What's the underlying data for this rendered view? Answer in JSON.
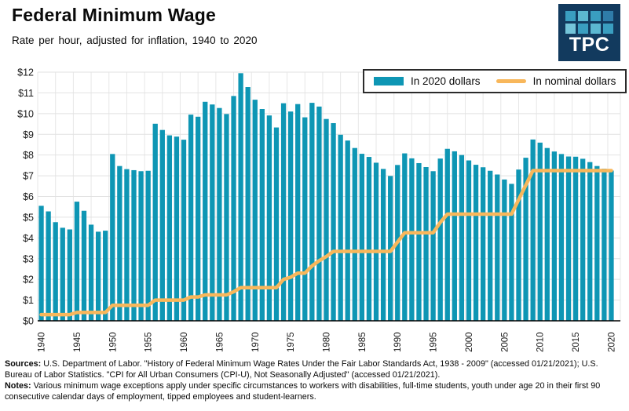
{
  "header": {
    "title": "Federal Minimum Wage",
    "subtitle": "Rate per hour, adjusted for inflation, 1940 to 2020"
  },
  "logo": {
    "text": "TPC",
    "bg_color": "#123A5E",
    "square_colors": [
      "#3A9EC0",
      "#5CB8D1",
      "#3A9EC0",
      "#2F7CA9",
      "#74C4D9",
      "#3A9EC0",
      "#5CB8D1",
      "#3A9EC0"
    ]
  },
  "chart_data": {
    "type": "bar",
    "title": "Federal Minimum Wage",
    "xlabel": "",
    "ylabel": "Rate per hour",
    "ylim": [
      0,
      12
    ],
    "grid": true,
    "legend_position": "top-right",
    "x": [
      1940,
      1941,
      1942,
      1943,
      1944,
      1945,
      1946,
      1947,
      1948,
      1949,
      1950,
      1951,
      1952,
      1953,
      1954,
      1955,
      1956,
      1957,
      1958,
      1959,
      1960,
      1961,
      1962,
      1963,
      1964,
      1965,
      1966,
      1967,
      1968,
      1969,
      1970,
      1971,
      1972,
      1973,
      1974,
      1975,
      1976,
      1977,
      1978,
      1979,
      1980,
      1981,
      1982,
      1983,
      1984,
      1985,
      1986,
      1987,
      1988,
      1989,
      1990,
      1991,
      1992,
      1993,
      1994,
      1995,
      1996,
      1997,
      1998,
      1999,
      2000,
      2001,
      2002,
      2003,
      2004,
      2005,
      2006,
      2007,
      2008,
      2009,
      2010,
      2011,
      2012,
      2013,
      2014,
      2015,
      2016,
      2017,
      2018,
      2019,
      2020
    ],
    "x_ticks": [
      1940,
      1945,
      1950,
      1955,
      1960,
      1965,
      1970,
      1975,
      1980,
      1985,
      1990,
      1995,
      2000,
      2005,
      2010,
      2015,
      2020
    ],
    "y_ticks": [
      "$0",
      "$1",
      "$2",
      "$3",
      "$4",
      "$5",
      "$6",
      "$7",
      "$8",
      "$9",
      "$10",
      "$11",
      "$12"
    ],
    "series": [
      {
        "name": "In 2020 dollars",
        "type": "bar",
        "color": "#0E96B4",
        "values": [
          5.55,
          5.28,
          4.76,
          4.49,
          4.41,
          5.75,
          5.31,
          4.64,
          4.3,
          4.35,
          8.05,
          7.47,
          7.32,
          7.27,
          7.22,
          7.24,
          9.51,
          9.21,
          8.95,
          8.89,
          8.74,
          9.95,
          9.85,
          10.57,
          10.44,
          10.27,
          9.98,
          10.85,
          11.95,
          11.28,
          10.67,
          10.22,
          9.91,
          9.33,
          10.5,
          10.1,
          10.46,
          9.82,
          10.52,
          10.34,
          9.74,
          9.54,
          8.98,
          8.7,
          8.34,
          8.06,
          7.91,
          7.63,
          7.33,
          6.99,
          7.52,
          8.08,
          7.84,
          7.61,
          7.42,
          7.22,
          7.83,
          8.3,
          8.18,
          8.0,
          7.74,
          7.53,
          7.41,
          7.24,
          7.06,
          6.82,
          6.61,
          7.3,
          7.87,
          8.75,
          8.6,
          8.34,
          8.17,
          8.05,
          7.93,
          7.92,
          7.82,
          7.66,
          7.47,
          7.34,
          7.25
        ]
      },
      {
        "name": "In nominal dollars",
        "type": "line",
        "color": "#F8B75B",
        "values": [
          0.3,
          0.3,
          0.3,
          0.3,
          0.3,
          0.4,
          0.4,
          0.4,
          0.4,
          0.4,
          0.75,
          0.75,
          0.75,
          0.75,
          0.75,
          0.75,
          1.0,
          1.0,
          1.0,
          1.0,
          1.0,
          1.15,
          1.15,
          1.25,
          1.25,
          1.25,
          1.25,
          1.4,
          1.6,
          1.6,
          1.6,
          1.6,
          1.6,
          1.6,
          2.0,
          2.1,
          2.3,
          2.3,
          2.65,
          2.9,
          3.1,
          3.35,
          3.35,
          3.35,
          3.35,
          3.35,
          3.35,
          3.35,
          3.35,
          3.35,
          3.8,
          4.25,
          4.25,
          4.25,
          4.25,
          4.25,
          4.75,
          5.15,
          5.15,
          5.15,
          5.15,
          5.15,
          5.15,
          5.15,
          5.15,
          5.15,
          5.15,
          5.85,
          6.55,
          7.25,
          7.25,
          7.25,
          7.25,
          7.25,
          7.25,
          7.25,
          7.25,
          7.25,
          7.25,
          7.25,
          7.25
        ]
      }
    ]
  },
  "footer": {
    "sources_label": "Sources:",
    "sources_text": " U.S. Department of Labor. \"History of Federal Minimum Wage Rates Under the Fair Labor Standards Act, 1938 - 2009\" (accessed 01/21/2021); U.S. Bureau of Labor Statistics. \"CPI for All Urban Consumers (CPI-U), Not Seasonally Adjusted\" (accessed 01/21/2021).",
    "notes_label": "Notes:",
    "notes_text": " Various minimum wage exceptions apply under specific circumstances to workers with disabilities, full-time students, youth under age 20 in their first 90 consecutive calendar days of employment, tipped employees and student-learners."
  }
}
